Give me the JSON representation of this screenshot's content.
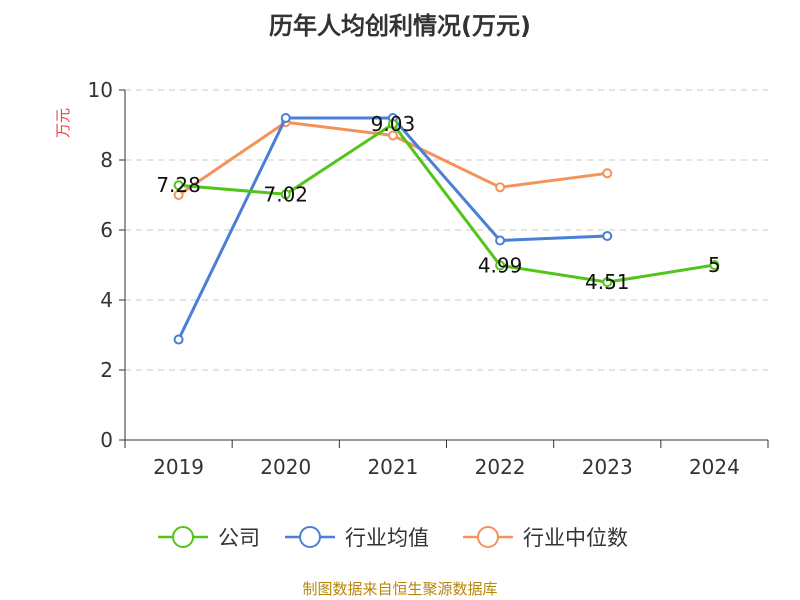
{
  "chart_data": {
    "type": "line",
    "title": "历年人均创利情况(万元)",
    "ylabel": "万元",
    "xlabel": "",
    "categories": [
      "2019",
      "2020",
      "2021",
      "2022",
      "2023",
      "2024"
    ],
    "ylim": [
      0,
      10
    ],
    "yticks": [
      0,
      2,
      4,
      6,
      8,
      10
    ],
    "grid": true,
    "legend_position": "bottom",
    "series": [
      {
        "name": "公司",
        "values": [
          7.28,
          7.02,
          9.03,
          4.99,
          4.51,
          5
        ],
        "labels": [
          "7.28",
          "7.02",
          "9.03",
          "4.99",
          "4.51",
          "5"
        ],
        "color": "#52c41a"
      },
      {
        "name": "行业均值",
        "values": [
          2.87,
          9.2,
          9.2,
          5.7,
          5.83,
          null
        ],
        "color": "#4a7fd8"
      },
      {
        "name": "行业中位数",
        "values": [
          7.0,
          9.08,
          8.7,
          7.22,
          7.62,
          null
        ],
        "color": "#f4925a"
      }
    ]
  },
  "source": "制图数据来自恒生聚源数据库"
}
